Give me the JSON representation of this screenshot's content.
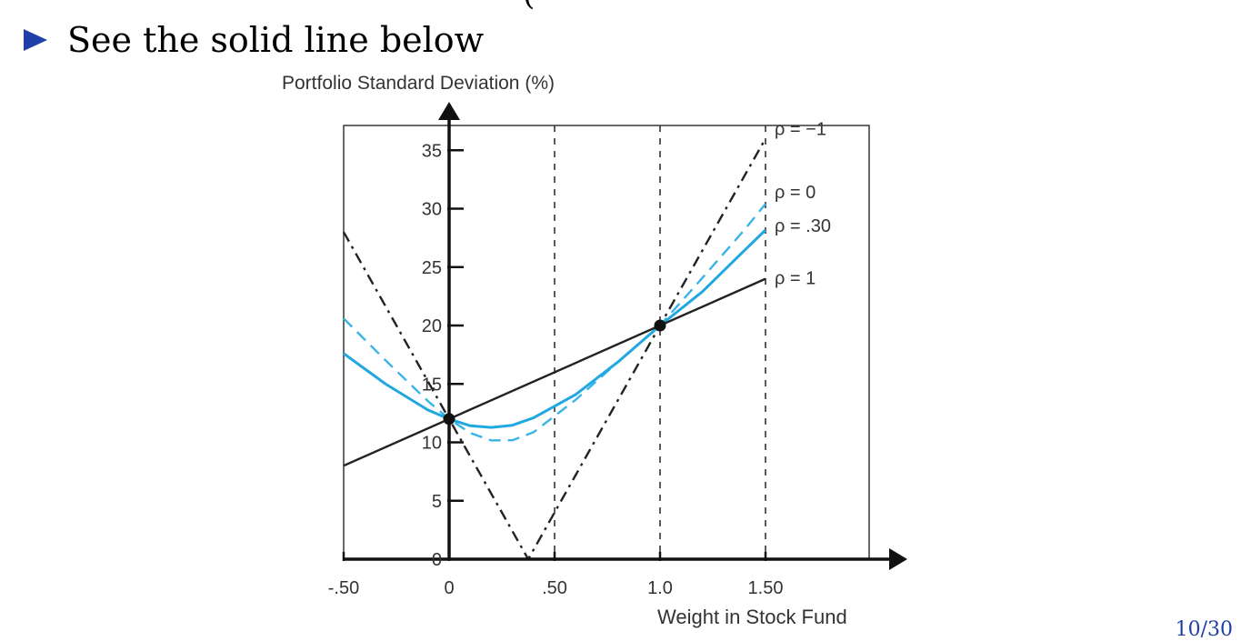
{
  "slide": {
    "bullet_text": "See the solid line below",
    "top_cut_text": "(",
    "page_number": "10/30"
  },
  "colors": {
    "bullet": "#1f3fa8",
    "rho_zero": "#3ab4e6",
    "rho_030": "#22a8e0",
    "rho_one": "#222222",
    "rho_neg_one": "#222222"
  },
  "chart_data": {
    "type": "line",
    "title": "",
    "ylabel": "Portfolio Standard Deviation (%)",
    "xlabel": "Weight in Stock Fund",
    "xlim": [
      -0.5,
      1.9
    ],
    "ylim": [
      0,
      37
    ],
    "x_ticks": [
      -0.5,
      0,
      0.5,
      1.0,
      1.5
    ],
    "x_tick_labels": [
      "-.50",
      "0",
      ".50",
      "1.0",
      "1.50"
    ],
    "y_ticks": [
      0,
      5,
      10,
      15,
      20,
      25,
      30,
      35
    ],
    "y_tick_labels": [
      "0",
      "5",
      "10",
      "15",
      "20",
      "25",
      "30",
      "35"
    ],
    "grid": false,
    "vertical_reference_lines": [
      0.5,
      1.0,
      1.5
    ],
    "points": [
      {
        "x": 0,
        "y": 12
      },
      {
        "x": 1,
        "y": 20
      }
    ],
    "series": [
      {
        "name": "ρ = −1",
        "style": "dash-dot",
        "color": "#222222",
        "x": [
          -0.5,
          0.375,
          1.5
        ],
        "y": [
          28,
          0,
          36
        ]
      },
      {
        "name": "ρ = 0",
        "style": "dashed",
        "color": "#3ab4e6",
        "x": [
          -0.5,
          -0.3,
          -0.1,
          0,
          0.1,
          0.2,
          0.3,
          0.4,
          0.6,
          0.8,
          1.0,
          1.2,
          1.4,
          1.5
        ],
        "y": [
          20.6,
          16.99,
          13.52,
          12.0,
          10.8,
          10.16,
          10.18,
          10.86,
          13.64,
          16.87,
          20.0,
          24.06,
          28.19,
          30.41
        ]
      },
      {
        "name": "ρ = .30",
        "style": "solid",
        "color": "#22a8e0",
        "x": [
          -0.5,
          -0.3,
          -0.1,
          0,
          0.1,
          0.2,
          0.3,
          0.4,
          0.6,
          0.8,
          1.0,
          1.2,
          1.4,
          1.5
        ],
        "y": [
          17.6,
          14.98,
          12.76,
          12.0,
          11.42,
          11.28,
          11.46,
          12.09,
          14.09,
          16.87,
          20.0,
          22.89,
          26.43,
          28.17
        ]
      },
      {
        "name": "ρ = 1",
        "style": "solid",
        "color": "#222222",
        "x": [
          -0.5,
          1.5
        ],
        "y": [
          8,
          24
        ]
      }
    ]
  }
}
